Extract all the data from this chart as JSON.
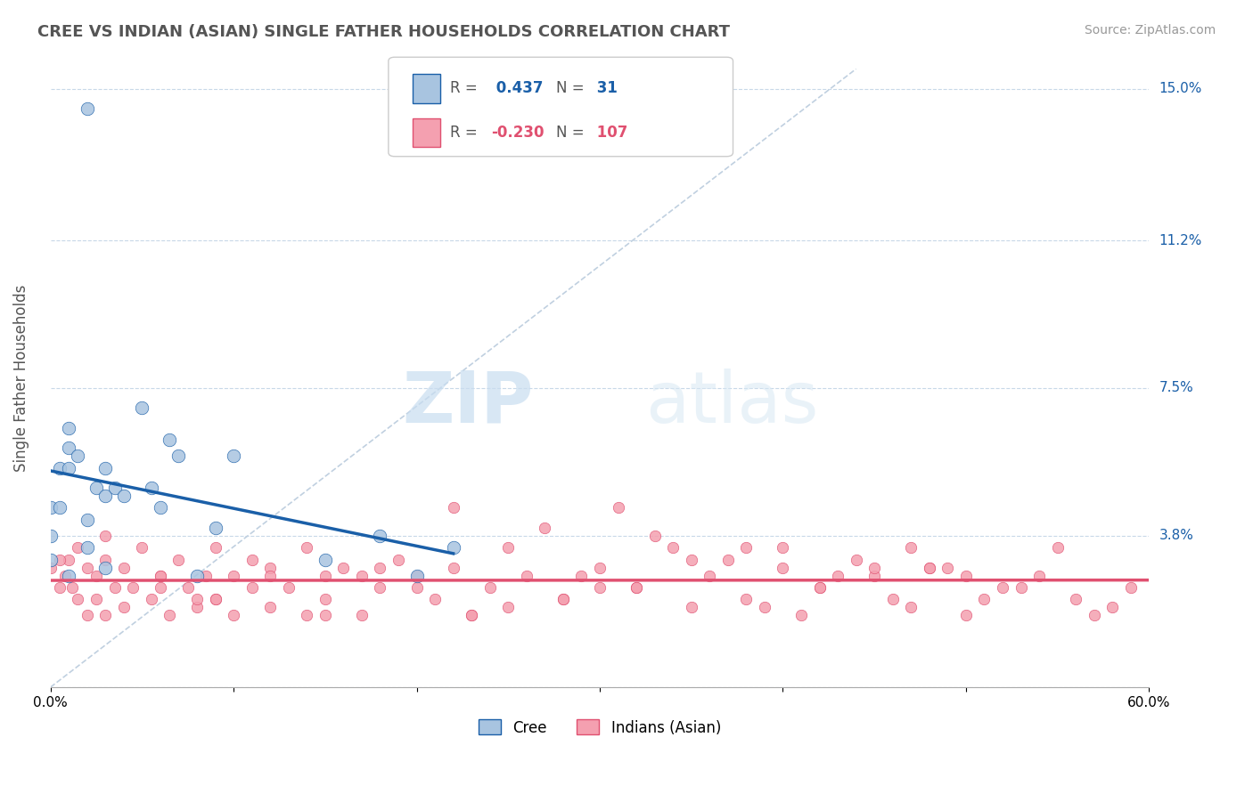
{
  "title": "CREE VS INDIAN (ASIAN) SINGLE FATHER HOUSEHOLDS CORRELATION CHART",
  "source": "Source: ZipAtlas.com",
  "ylabel": "Single Father Households",
  "xlim": [
    0.0,
    0.6
  ],
  "ylim": [
    0.0,
    0.155
  ],
  "yticks": [
    0.0,
    0.038,
    0.075,
    0.112,
    0.15
  ],
  "ytick_labels": [
    "",
    "3.8%",
    "7.5%",
    "11.2%",
    "15.0%"
  ],
  "xticks": [
    0.0,
    0.1,
    0.2,
    0.3,
    0.4,
    0.5,
    0.6
  ],
  "xtick_labels": [
    "0.0%",
    "",
    "",
    "",
    "",
    "",
    "60.0%"
  ],
  "cree_R": 0.437,
  "cree_N": 31,
  "indian_R": -0.23,
  "indian_N": 107,
  "cree_color": "#a8c4e0",
  "indian_color": "#f4a0b0",
  "cree_line_color": "#1a5fa8",
  "indian_line_color": "#e05070",
  "diagonal_color": "#c0d0e0",
  "background_color": "#ffffff",
  "cree_points_x": [
    0.02,
    0.01,
    0.005,
    0.0,
    0.0,
    0.0,
    0.01,
    0.01,
    0.015,
    0.02,
    0.025,
    0.03,
    0.03,
    0.035,
    0.04,
    0.05,
    0.055,
    0.06,
    0.065,
    0.07,
    0.08,
    0.09,
    0.1,
    0.15,
    0.18,
    0.2,
    0.22,
    0.005,
    0.01,
    0.02,
    0.03
  ],
  "cree_points_y": [
    0.145,
    0.065,
    0.055,
    0.045,
    0.038,
    0.032,
    0.06,
    0.055,
    0.058,
    0.042,
    0.05,
    0.048,
    0.055,
    0.05,
    0.048,
    0.07,
    0.05,
    0.045,
    0.062,
    0.058,
    0.028,
    0.04,
    0.058,
    0.032,
    0.038,
    0.028,
    0.035,
    0.045,
    0.028,
    0.035,
    0.03
  ],
  "indian_points_x": [
    0.0,
    0.005,
    0.008,
    0.01,
    0.012,
    0.015,
    0.015,
    0.02,
    0.02,
    0.025,
    0.025,
    0.03,
    0.03,
    0.035,
    0.04,
    0.04,
    0.045,
    0.05,
    0.055,
    0.06,
    0.065,
    0.07,
    0.075,
    0.08,
    0.085,
    0.09,
    0.09,
    0.1,
    0.1,
    0.11,
    0.11,
    0.12,
    0.12,
    0.13,
    0.14,
    0.15,
    0.15,
    0.16,
    0.17,
    0.18,
    0.19,
    0.2,
    0.21,
    0.22,
    0.23,
    0.24,
    0.25,
    0.26,
    0.27,
    0.28,
    0.29,
    0.3,
    0.31,
    0.32,
    0.33,
    0.34,
    0.35,
    0.36,
    0.37,
    0.38,
    0.39,
    0.4,
    0.41,
    0.42,
    0.43,
    0.44,
    0.45,
    0.46,
    0.47,
    0.48,
    0.49,
    0.5,
    0.51,
    0.52,
    0.53,
    0.54,
    0.55,
    0.56,
    0.57,
    0.58,
    0.59,
    0.005,
    0.03,
    0.06,
    0.09,
    0.2,
    0.25,
    0.4,
    0.45,
    0.5,
    0.3,
    0.15,
    0.35,
    0.22,
    0.28,
    0.48,
    0.17,
    0.38,
    0.42,
    0.12,
    0.08,
    0.18,
    0.23,
    0.32,
    0.47,
    0.06,
    0.14
  ],
  "indian_points_y": [
    0.03,
    0.025,
    0.028,
    0.032,
    0.025,
    0.035,
    0.022,
    0.03,
    0.018,
    0.028,
    0.022,
    0.032,
    0.018,
    0.025,
    0.03,
    0.02,
    0.025,
    0.035,
    0.022,
    0.028,
    0.018,
    0.032,
    0.025,
    0.02,
    0.028,
    0.035,
    0.022,
    0.028,
    0.018,
    0.032,
    0.025,
    0.03,
    0.02,
    0.025,
    0.035,
    0.022,
    0.028,
    0.03,
    0.018,
    0.025,
    0.032,
    0.028,
    0.022,
    0.03,
    0.018,
    0.025,
    0.035,
    0.028,
    0.04,
    0.022,
    0.028,
    0.03,
    0.045,
    0.025,
    0.038,
    0.035,
    0.02,
    0.028,
    0.032,
    0.022,
    0.02,
    0.03,
    0.018,
    0.025,
    0.028,
    0.032,
    0.028,
    0.022,
    0.035,
    0.03,
    0.03,
    0.018,
    0.022,
    0.025,
    0.025,
    0.028,
    0.035,
    0.022,
    0.018,
    0.02,
    0.025,
    0.032,
    0.038,
    0.028,
    0.022,
    0.025,
    0.02,
    0.035,
    0.03,
    0.028,
    0.025,
    0.018,
    0.032,
    0.045,
    0.022,
    0.03,
    0.028,
    0.035,
    0.025,
    0.028,
    0.022,
    0.03,
    0.018,
    0.025,
    0.02,
    0.025,
    0.018
  ]
}
